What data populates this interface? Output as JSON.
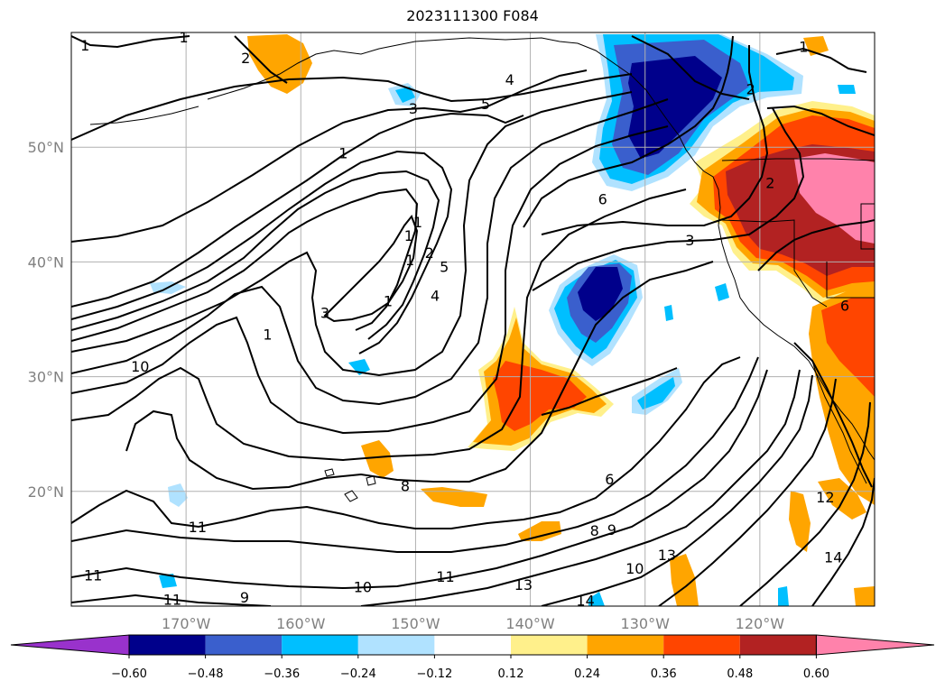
{
  "title": "2023111300 F084",
  "map": {
    "lon_range": [
      -180,
      -110
    ],
    "lat_range": [
      10,
      60
    ],
    "grid": true,
    "lon_ticks": [
      {
        "value": -170,
        "label": "170°W"
      },
      {
        "value": -160,
        "label": "160°W"
      },
      {
        "value": -150,
        "label": "150°W"
      },
      {
        "value": -140,
        "label": "140°W"
      },
      {
        "value": -130,
        "label": "130°W"
      },
      {
        "value": -120,
        "label": "120°W"
      }
    ],
    "lat_ticks": [
      {
        "value": 50,
        "label": "50°N"
      },
      {
        "value": 40,
        "label": "40°N"
      },
      {
        "value": 30,
        "label": "30°N"
      },
      {
        "value": 20,
        "label": "20°N"
      }
    ],
    "contour_labels": [
      {
        "text": "1",
        "lon": -178.8,
        "lat": 58.9
      },
      {
        "text": "1",
        "lon": -170.2,
        "lat": 59.6
      },
      {
        "text": "2",
        "lon": -164.8,
        "lat": 57.8
      },
      {
        "text": "3",
        "lon": -150.2,
        "lat": 53.4
      },
      {
        "text": "4",
        "lon": -141.8,
        "lat": 55.9
      },
      {
        "text": "5",
        "lon": -143.9,
        "lat": 53.8
      },
      {
        "text": "1",
        "lon": -156.3,
        "lat": 49.5
      },
      {
        "text": "1",
        "lon": -149.8,
        "lat": 43.5
      },
      {
        "text": "1",
        "lon": -150.6,
        "lat": 42.3
      },
      {
        "text": "2",
        "lon": -148.8,
        "lat": 40.8
      },
      {
        "text": "1",
        "lon": -150.5,
        "lat": 40.2
      },
      {
        "text": "5",
        "lon": -147.5,
        "lat": 39.6
      },
      {
        "text": "1",
        "lon": -152.4,
        "lat": 36.6
      },
      {
        "text": "4",
        "lon": -148.3,
        "lat": 37.1
      },
      {
        "text": "3",
        "lon": -157.9,
        "lat": 35.6
      },
      {
        "text": "1",
        "lon": -162.9,
        "lat": 33.7
      },
      {
        "text": "10",
        "lon": -174.0,
        "lat": 30.9
      },
      {
        "text": "6",
        "lon": -133.7,
        "lat": 45.5
      },
      {
        "text": "3",
        "lon": -126.1,
        "lat": 41.9
      },
      {
        "text": "2",
        "lon": -119.1,
        "lat": 46.9
      },
      {
        "text": "2",
        "lon": -120.8,
        "lat": 55.1
      },
      {
        "text": "1",
        "lon": -116.2,
        "lat": 58.8
      },
      {
        "text": "6",
        "lon": -112.6,
        "lat": 36.2
      },
      {
        "text": "8",
        "lon": -150.9,
        "lat": 20.5
      },
      {
        "text": "6",
        "lon": -133.1,
        "lat": 21.1
      },
      {
        "text": "8",
        "lon": -134.4,
        "lat": 16.6
      },
      {
        "text": "9",
        "lon": -132.9,
        "lat": 16.7
      },
      {
        "text": "11",
        "lon": -169.0,
        "lat": 16.9
      },
      {
        "text": "11",
        "lon": -147.4,
        "lat": 12.6
      },
      {
        "text": "11",
        "lon": -178.1,
        "lat": 12.7
      },
      {
        "text": "11",
        "lon": -171.2,
        "lat": 10.6
      },
      {
        "text": "9",
        "lon": -164.9,
        "lat": 10.8
      },
      {
        "text": "10",
        "lon": -154.6,
        "lat": 11.7
      },
      {
        "text": "13",
        "lon": -140.6,
        "lat": 11.9
      },
      {
        "text": "10",
        "lon": -130.9,
        "lat": 13.3
      },
      {
        "text": "13",
        "lon": -128.1,
        "lat": 14.5
      },
      {
        "text": "12",
        "lon": -114.3,
        "lat": 19.5
      },
      {
        "text": "14",
        "lon": -113.6,
        "lat": 14.3
      },
      {
        "text": "14",
        "lon": -135.2,
        "lat": 10.5
      }
    ]
  },
  "colorbar": {
    "levels": [
      "−0.60",
      "−0.48",
      "−0.36",
      "−0.24",
      "−0.12",
      "0.12",
      "0.24",
      "0.36",
      "0.48",
      "0.60"
    ],
    "colors": [
      "#9932cc",
      "#00008b",
      "#3a5fcd",
      "#00bfff",
      "#b0e2ff",
      "#ffffff",
      "#fff08b",
      "#ffa500",
      "#ff4500",
      "#b22222",
      "#ff82ab"
    ],
    "extend": "both"
  },
  "colors": {
    "grid": "#b0b0b0",
    "contour": "#000000",
    "coast": "#000000"
  }
}
